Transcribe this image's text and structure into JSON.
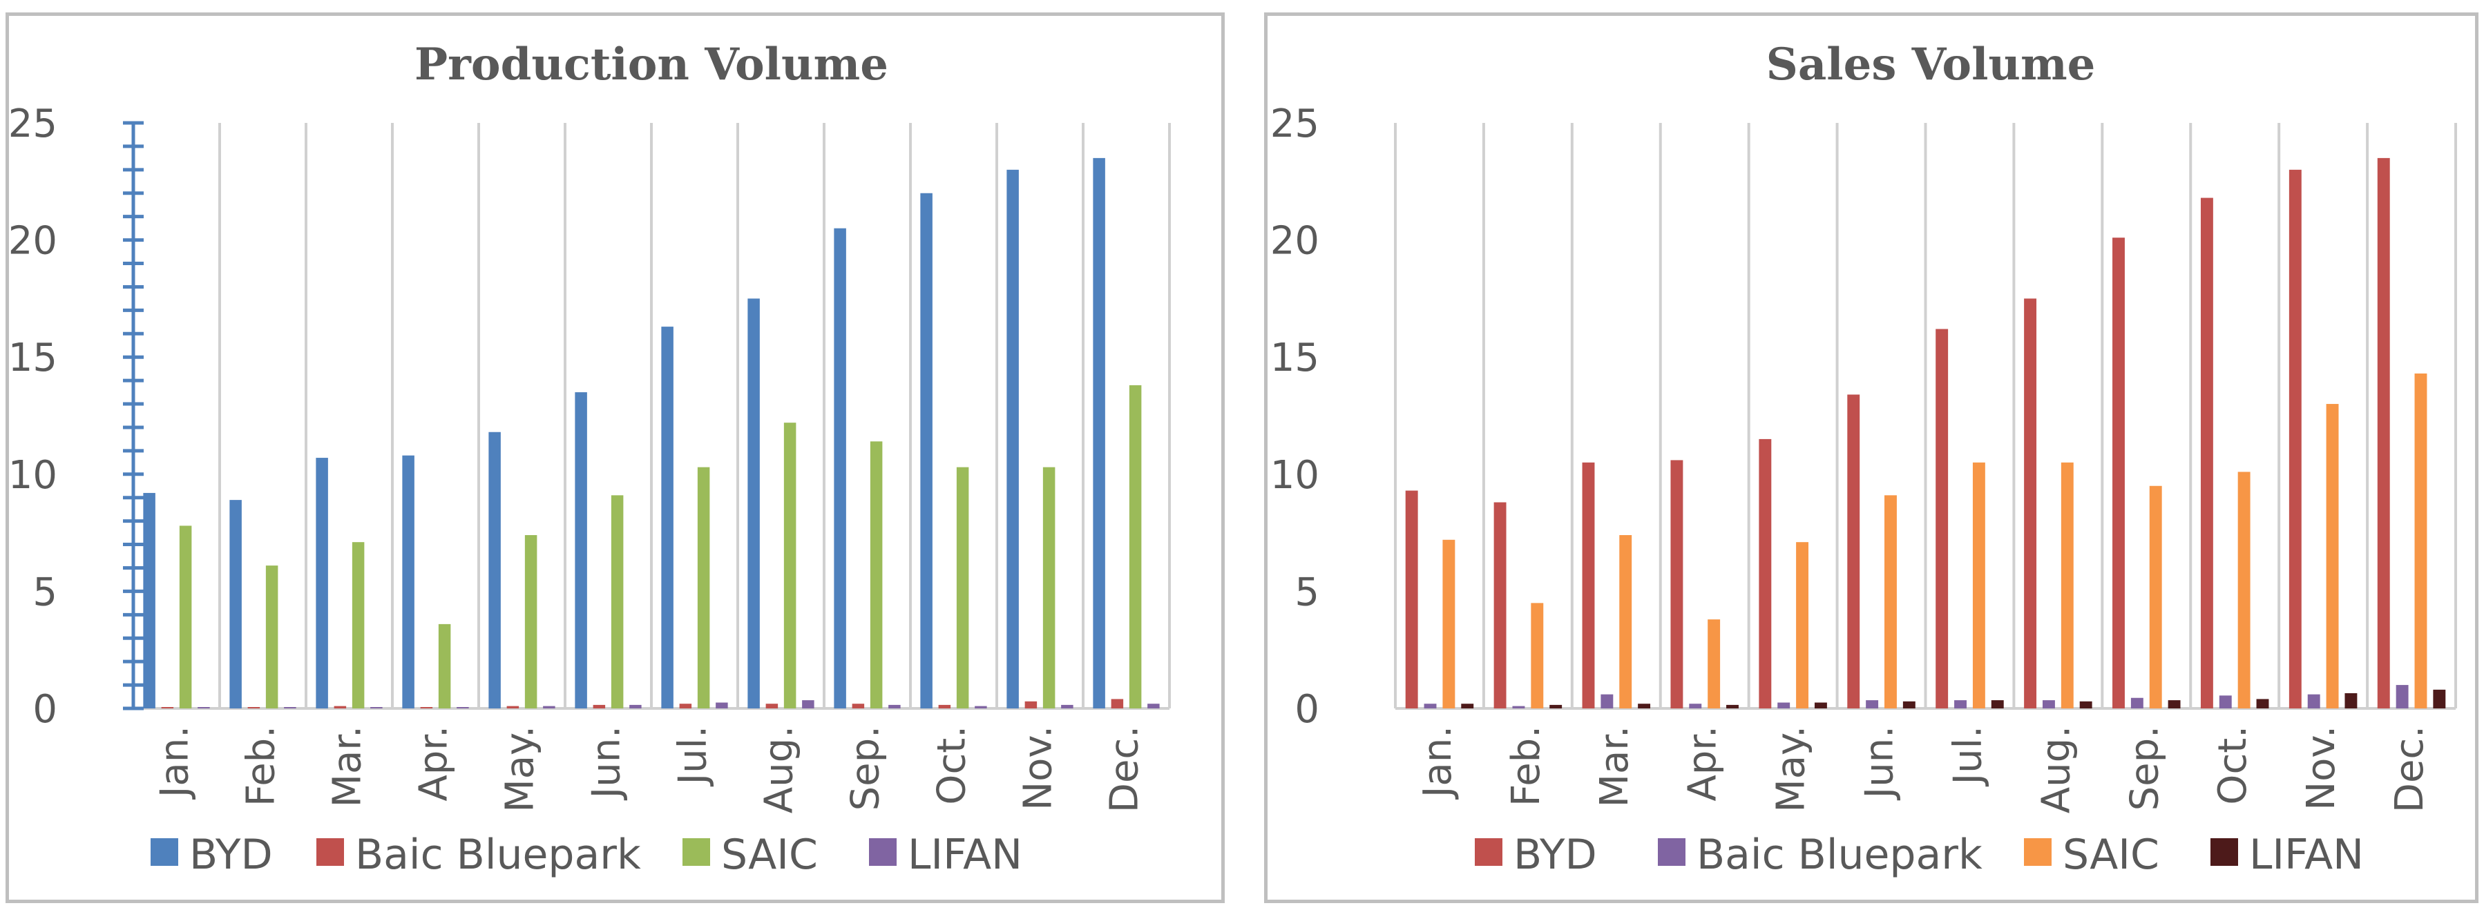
{
  "chart_data": [
    {
      "type": "bar",
      "title": "Production Volume",
      "categories": [
        "Jan.",
        "Feb.",
        "Mar.",
        "Apr.",
        "May.",
        "Jun.",
        "Jul.",
        "Aug.",
        "Sep.",
        "Oct.",
        "Nov.",
        "Dec."
      ],
      "ylim": [
        0,
        25
      ],
      "yticks": [
        "0",
        "5",
        "10",
        "15",
        "20",
        "25"
      ],
      "grid": "vertical category separators",
      "legend_position": "bottom",
      "series": [
        {
          "name": "BYD",
          "color": "#4f81bd",
          "values": [
            9.2,
            8.9,
            10.7,
            10.8,
            11.8,
            13.5,
            16.3,
            17.5,
            20.5,
            22.0,
            23.0,
            23.5
          ]
        },
        {
          "name": "Baic Bluepark",
          "color": "#c0504d",
          "values": [
            0.05,
            0.05,
            0.1,
            0.05,
            0.1,
            0.15,
            0.2,
            0.2,
            0.2,
            0.15,
            0.3,
            0.4
          ]
        },
        {
          "name": "SAIC",
          "color": "#9bbb59",
          "values": [
            7.8,
            6.1,
            7.1,
            3.6,
            7.4,
            9.1,
            10.3,
            12.2,
            11.4,
            10.3,
            10.3,
            13.8
          ]
        },
        {
          "name": "LIFAN",
          "color": "#8064a2",
          "values": [
            0.05,
            0.02,
            0.05,
            0.02,
            0.1,
            0.15,
            0.25,
            0.35,
            0.15,
            0.1,
            0.15,
            0.2
          ]
        }
      ]
    },
    {
      "type": "bar",
      "title": "Sales Volume",
      "categories": [
        "Jan.",
        "Feb.",
        "Mar.",
        "Apr.",
        "May.",
        "Jun.",
        "Jul.",
        "Aug.",
        "Sep.",
        "Oct.",
        "Nov.",
        "Dec."
      ],
      "ylim": [
        0,
        25
      ],
      "yticks": [
        "0",
        "5",
        "10",
        "15",
        "20",
        "25"
      ],
      "grid": "vertical category separators",
      "legend_position": "bottom",
      "series": [
        {
          "name": "BYD",
          "color": "#c0504d",
          "values": [
            9.3,
            8.8,
            10.5,
            10.6,
            11.5,
            13.4,
            16.2,
            17.5,
            20.1,
            21.8,
            23.0,
            23.5
          ]
        },
        {
          "name": "Baic Bluepark",
          "color": "#8064a2",
          "values": [
            0.2,
            0.1,
            0.6,
            0.2,
            0.25,
            0.35,
            0.35,
            0.35,
            0.45,
            0.55,
            0.6,
            1.0
          ]
        },
        {
          "name": "SAIC",
          "color": "#f79646",
          "values": [
            7.2,
            4.5,
            7.4,
            3.8,
            7.1,
            9.1,
            10.5,
            10.5,
            9.5,
            10.1,
            13.0,
            14.3
          ]
        },
        {
          "name": "LIFAN",
          "color": "#4d1a1a",
          "values": [
            0.2,
            0.15,
            0.2,
            0.15,
            0.25,
            0.3,
            0.35,
            0.3,
            0.35,
            0.4,
            0.65,
            0.8
          ]
        }
      ]
    }
  ]
}
